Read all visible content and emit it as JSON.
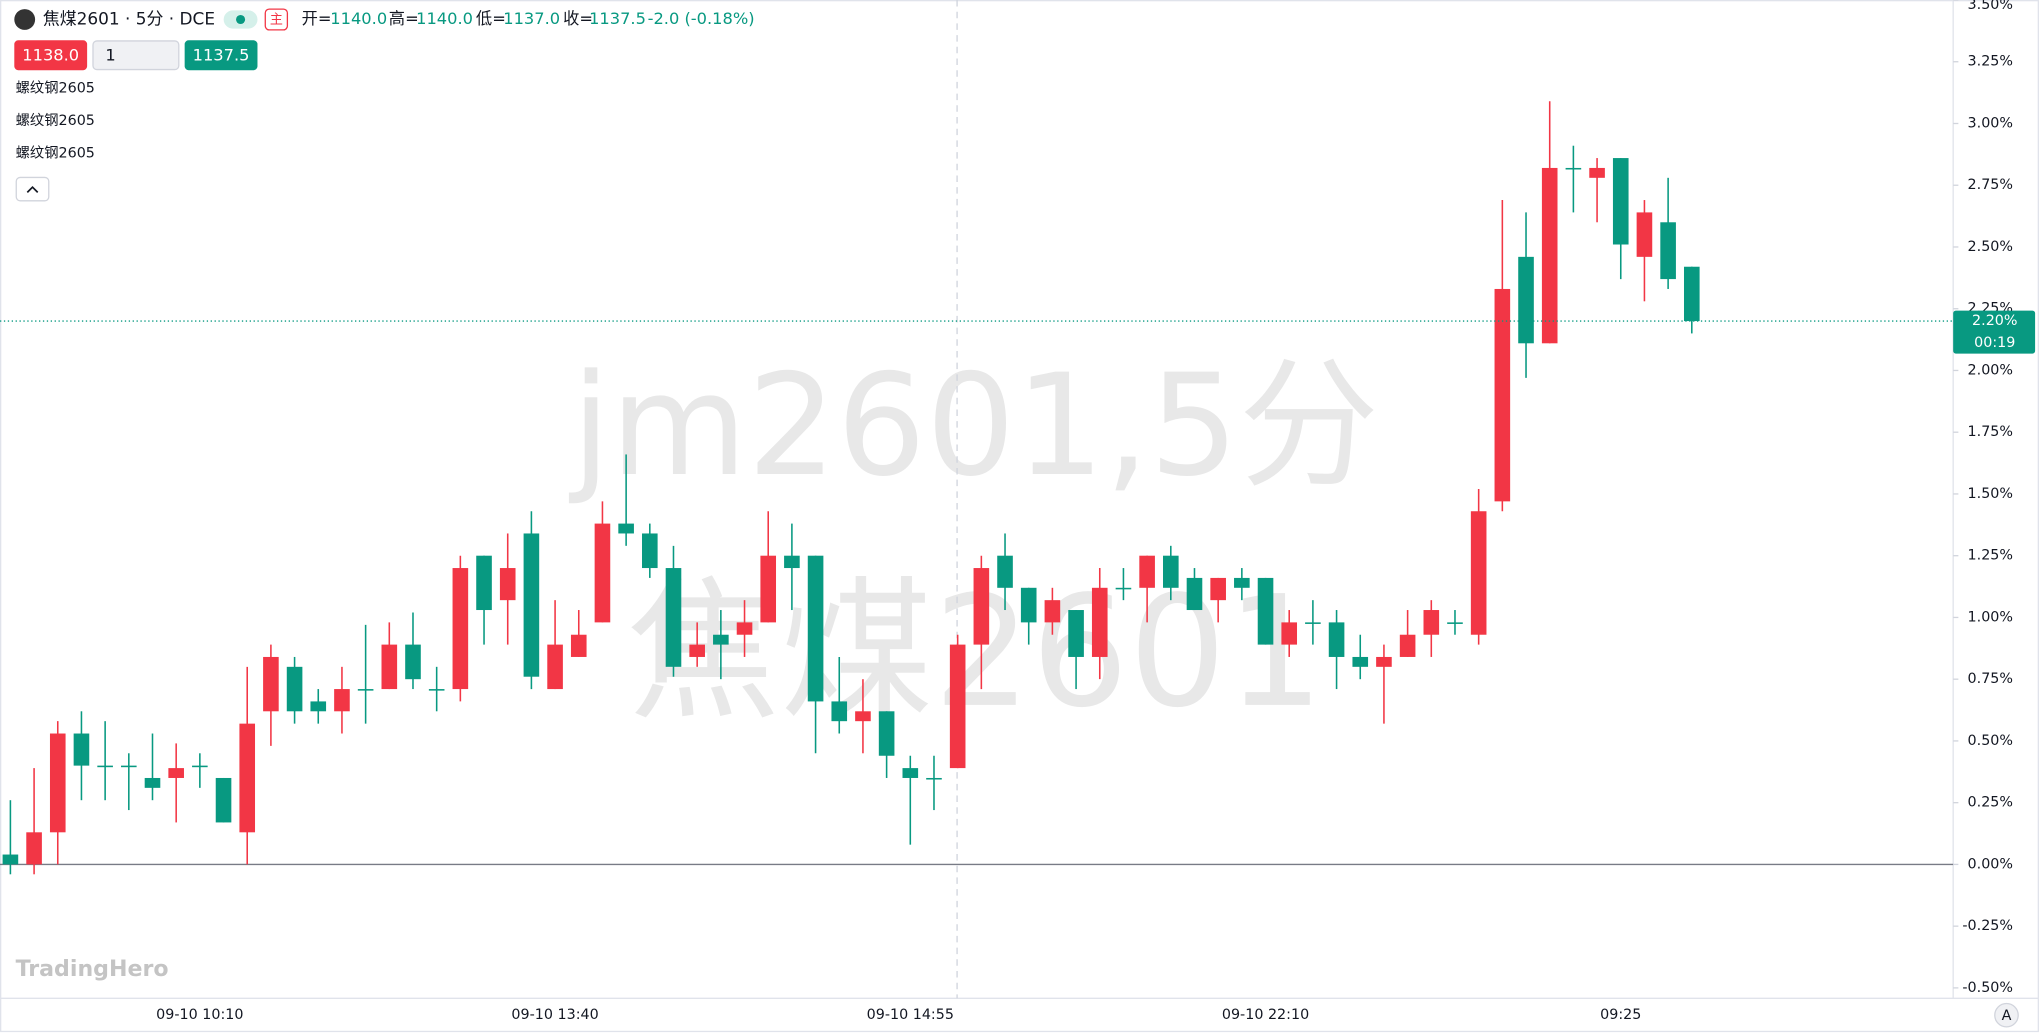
{
  "chart_data": {
    "type": "candlestick",
    "header": {
      "symbol": "焦煤2601 · 5分 · DCE",
      "badge": "主",
      "open_label": "开=",
      "open": "1140.0",
      "high_label": "高=",
      "high": "1140.0",
      "low_label": "低=",
      "low": "1137.0",
      "close_label": "收=",
      "close": "1137.5",
      "change": "-2.0 (-0.18%)"
    },
    "order": {
      "sell": "1138.0",
      "quantity": "1",
      "buy": "1137.5"
    },
    "indicators": [
      "螺纹钢2605",
      "螺纹钢2605",
      "螺纹钢2605"
    ],
    "watermark": [
      "jm2601,5分",
      "焦煤2601"
    ],
    "logo": "TradingHero",
    "scale_button": "A",
    "up_color": "#f23645",
    "down_color": "#089981",
    "categories": [
      null,
      null,
      null,
      null,
      null,
      null,
      null,
      null,
      "09-10 10:10",
      null,
      null,
      null,
      null,
      null,
      null,
      null,
      null,
      null,
      null,
      null,
      null,
      null,
      null,
      "09-10 13:40",
      null,
      null,
      null,
      null,
      null,
      null,
      null,
      null,
      null,
      null,
      null,
      null,
      null,
      null,
      "09-10 14:55",
      null,
      null,
      null,
      null,
      null,
      null,
      null,
      null,
      null,
      null,
      null,
      null,
      null,
      null,
      "09-10 22:10",
      null,
      null,
      null,
      null,
      null,
      null,
      null,
      null,
      null,
      null,
      null,
      null,
      null,
      null,
      "09:25",
      null,
      null,
      null
    ],
    "open": [
      0.04,
      0,
      0.13,
      0.53,
      0.4,
      0.4,
      0.35,
      0.35,
      0.4,
      0.35,
      0.13,
      0.62,
      0.8,
      0.66,
      0.62,
      0.71,
      0.71,
      0.89,
      0.71,
      0.71,
      1.25,
      1.07,
      1.34,
      0.71,
      0.84,
      0.98,
      1.38,
      1.34,
      1.2,
      0.84,
      0.93,
      0.93,
      0.98,
      1.25,
      1.25,
      0.66,
      0.58,
      0.62,
      0.39,
      0.35,
      0.39,
      0.89,
      1.25,
      1.12,
      0.98,
      1.03,
      0.84,
      1.12,
      1.12,
      1.25,
      1.16,
      1.07,
      1.16,
      1.16,
      0.89,
      0.98,
      0.98,
      0.84,
      0.8,
      0.84,
      0.93,
      0.98,
      0.93,
      1.47,
      2.46,
      2.11,
      2.82,
      2.78,
      2.86,
      2.46,
      2.6,
      2.42
    ],
    "high": [
      0.26,
      0.39,
      0.58,
      0.62,
      0.58,
      0.45,
      0.53,
      0.49,
      0.45,
      0.35,
      0.8,
      0.89,
      0.84,
      0.71,
      0.8,
      0.97,
      0.98,
      1.02,
      0.8,
      1.25,
      1.25,
      1.34,
      1.43,
      1.07,
      1.03,
      1.47,
      1.66,
      1.38,
      1.29,
      0.98,
      1.03,
      1.07,
      1.43,
      1.38,
      1.25,
      0.84,
      0.75,
      0.62,
      0.44,
      0.44,
      0.93,
      1.25,
      1.34,
      1.12,
      1.12,
      1.03,
      1.2,
      1.2,
      1.25,
      1.29,
      1.2,
      1.16,
      1.2,
      1.16,
      1.03,
      1.07,
      1.03,
      0.93,
      0.89,
      1.03,
      1.07,
      1.03,
      1.52,
      2.69,
      2.64,
      3.09,
      2.91,
      2.86,
      2.86,
      2.69,
      2.78,
      2.42
    ],
    "low": [
      -0.04,
      -0.04,
      0,
      0.26,
      0.26,
      0.22,
      0.26,
      0.17,
      0.31,
      0.17,
      0,
      0.48,
      0.57,
      0.57,
      0.53,
      0.57,
      0.71,
      0.71,
      0.62,
      0.66,
      0.89,
      0.89,
      0.71,
      0.71,
      0.84,
      0.98,
      1.29,
      1.16,
      0.76,
      0.8,
      0.75,
      0.84,
      0.98,
      1.03,
      0.45,
      0.53,
      0.45,
      0.35,
      0.08,
      0.22,
      0.39,
      0.71,
      1.03,
      0.89,
      0.93,
      0.71,
      0.75,
      1.07,
      0.98,
      1.07,
      1.03,
      0.98,
      1.07,
      0.89,
      0.84,
      0.89,
      0.71,
      0.75,
      0.57,
      0.84,
      0.84,
      0.93,
      0.89,
      1.43,
      1.97,
      2.11,
      2.64,
      2.6,
      2.37,
      2.28,
      2.33,
      2.15
    ],
    "close": [
      0,
      0.13,
      0.53,
      0.4,
      0.4,
      0.4,
      0.31,
      0.39,
      0.4,
      0.17,
      0.57,
      0.84,
      0.62,
      0.62,
      0.71,
      0.71,
      0.89,
      0.75,
      0.71,
      1.2,
      1.03,
      1.2,
      0.76,
      0.89,
      0.93,
      1.38,
      1.34,
      1.2,
      0.8,
      0.89,
      0.89,
      0.98,
      1.25,
      1.2,
      0.66,
      0.58,
      0.62,
      0.44,
      0.35,
      0.35,
      0.89,
      1.2,
      1.12,
      0.98,
      1.07,
      0.84,
      1.12,
      1.12,
      1.25,
      1.12,
      1.03,
      1.16,
      1.12,
      0.89,
      0.98,
      0.98,
      0.84,
      0.8,
      0.84,
      0.93,
      1.03,
      0.98,
      1.43,
      2.33,
      2.11,
      2.82,
      2.82,
      2.82,
      2.51,
      2.64,
      2.37,
      2.2
    ],
    "ylim": [
      -0.5,
      3.5
    ],
    "yticks": [
      {
        "value": -0.5,
        "label": "-0.50%"
      },
      {
        "value": -0.25,
        "label": "-0.25%"
      },
      {
        "value": 0,
        "label": "0.00%"
      },
      {
        "value": 0.25,
        "label": "0.25%"
      },
      {
        "value": 0.5,
        "label": "0.50%"
      },
      {
        "value": 0.75,
        "label": "0.75%"
      },
      {
        "value": 1,
        "label": "1.00%"
      },
      {
        "value": 1.25,
        "label": "1.25%"
      },
      {
        "value": 1.5,
        "label": "1.50%"
      },
      {
        "value": 1.75,
        "label": "1.75%"
      },
      {
        "value": 2,
        "label": "2.00%"
      },
      {
        "value": 2.25,
        "label": "2.25%"
      },
      {
        "value": 2.5,
        "label": "2.50%"
      },
      {
        "value": 2.75,
        "label": "2.75%"
      },
      {
        "value": 3,
        "label": "3.00%"
      },
      {
        "value": 3.25,
        "label": "3.25%"
      },
      {
        "value": 3.5,
        "label": "3.50%"
      }
    ],
    "price_line": {
      "value": 2.2,
      "label": "2.20%",
      "countdown": "00:19"
    }
  }
}
